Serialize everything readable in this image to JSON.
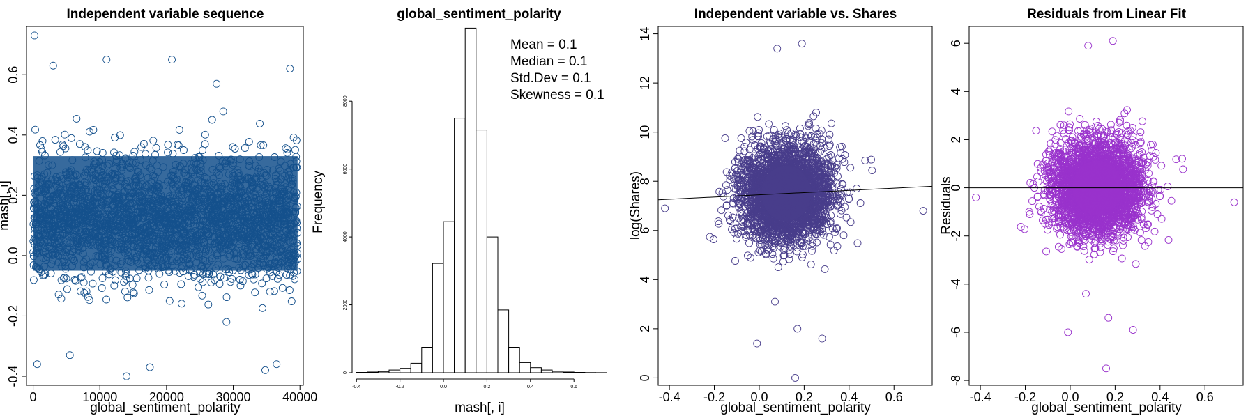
{
  "chart_data": [
    {
      "type": "scatter",
      "title": "Independent variable sequence",
      "xlabel": "global_sentiment_polarity",
      "ylabel": "mash[, i]",
      "xlim": [
        -1000,
        40500
      ],
      "ylim": [
        -0.43,
        0.76
      ],
      "xticks": [
        0,
        10000,
        20000,
        30000,
        40000
      ],
      "yticks": [
        -0.4,
        -0.2,
        0.0,
        0.2,
        0.4,
        0.6
      ],
      "ytick_labels": [
        "-0.4",
        "-0.2",
        "0.0",
        "0.2",
        "0.4",
        "0.6"
      ],
      "color": "#14508c",
      "marker": "open-circle",
      "n_points": 39644,
      "distribution": {
        "center": 0.12,
        "spread": 0.1,
        "core_range": [
          -0.05,
          0.33
        ]
      },
      "outliers": [
        [
          200,
          0.73
        ],
        [
          3000,
          0.63
        ],
        [
          11000,
          0.65
        ],
        [
          20800,
          0.65
        ],
        [
          27500,
          0.57
        ],
        [
          38500,
          0.62
        ],
        [
          600,
          -0.36
        ],
        [
          14000,
          -0.4
        ],
        [
          17500,
          -0.37
        ],
        [
          34800,
          -0.38
        ],
        [
          36500,
          -0.36
        ],
        [
          5500,
          -0.33
        ]
      ]
    },
    {
      "type": "histogram",
      "title": "global_sentiment_polarity",
      "xlabel": "mash[, i]",
      "ylabel": "Frequency",
      "xlim": [
        -0.42,
        0.75
      ],
      "ylim": [
        0,
        10200
      ],
      "xticks": [
        -0.4,
        -0.2,
        0.0,
        0.2,
        0.4,
        0.6
      ],
      "xtick_labels": [
        "-0.4",
        "-0.2",
        "0.0",
        "0.2",
        "0.4",
        "0.6"
      ],
      "yticks": [
        0,
        2000,
        4000,
        6000,
        8000
      ],
      "ytick_labels": [
        "0",
        "2000",
        "4000",
        "6000",
        "8000"
      ],
      "bin_width": 0.05,
      "bins_start": [
        -0.4,
        -0.35,
        -0.3,
        -0.25,
        -0.2,
        -0.15,
        -0.1,
        -0.05,
        0.0,
        0.05,
        0.1,
        0.15,
        0.2,
        0.25,
        0.3,
        0.35,
        0.4,
        0.45,
        0.5,
        0.55,
        0.6,
        0.65,
        0.7
      ],
      "counts": [
        10,
        20,
        35,
        80,
        130,
        280,
        750,
        3220,
        4450,
        7500,
        10150,
        7150,
        4000,
        1850,
        750,
        300,
        150,
        80,
        40,
        20,
        10,
        5,
        3
      ],
      "stats": [
        "Mean = 0.1",
        "Median = 0.1",
        "Std.Dev = 0.1",
        "Skewness = 0.1"
      ]
    },
    {
      "type": "scatter",
      "title": "Independent variable vs. Shares",
      "xlabel": "global_sentiment_polarity",
      "ylabel": "log(Shares)",
      "xlim": [
        -0.45,
        0.77
      ],
      "ylim": [
        -0.3,
        14.3
      ],
      "xticks": [
        -0.4,
        -0.2,
        0.0,
        0.2,
        0.4,
        0.6
      ],
      "xtick_labels": [
        "-0.4",
        "-0.2",
        "0.0",
        "0.2",
        "0.4",
        "0.6"
      ],
      "yticks": [
        0,
        2,
        4,
        6,
        8,
        10,
        12,
        14
      ],
      "ytick_labels": [
        "0",
        "2",
        "4",
        "6",
        "8",
        "10",
        "12",
        "14"
      ],
      "color": "#483d8b",
      "marker": "open-circle",
      "distribution": {
        "x_center": 0.12,
        "x_spread": 0.1,
        "y_center": 7.5,
        "y_spread": 0.95
      },
      "fit_line": {
        "intercept": 7.45,
        "slope": 0.45
      },
      "outliers": [
        [
          0.16,
          0.0
        ],
        [
          -0.01,
          1.4
        ],
        [
          0.28,
          1.6
        ],
        [
          0.17,
          2.0
        ],
        [
          0.07,
          3.1
        ],
        [
          0.19,
          13.6
        ],
        [
          0.08,
          13.4
        ],
        [
          0.73,
          6.8
        ],
        [
          -0.42,
          6.9
        ]
      ]
    },
    {
      "type": "scatter",
      "title": "Residuals from Linear Fit",
      "xlabel": "global_sentiment_polarity",
      "ylabel": "Residuals",
      "xlim": [
        -0.45,
        0.77
      ],
      "ylim": [
        -8.2,
        6.7
      ],
      "xticks": [
        -0.4,
        -0.2,
        0.0,
        0.2,
        0.4,
        0.6
      ],
      "xtick_labels": [
        "-0.4",
        "-0.2",
        "0.0",
        "0.2",
        "0.4",
        "0.6"
      ],
      "yticks": [
        -8,
        -6,
        -4,
        -2,
        0,
        2,
        4,
        6
      ],
      "ytick_labels": [
        "-8",
        "-6",
        "-4",
        "-2",
        "0",
        "2",
        "4",
        "6"
      ],
      "color": "#9932cc",
      "marker": "open-circle",
      "distribution": {
        "x_center": 0.12,
        "x_spread": 0.1,
        "y_center": 0.0,
        "y_spread": 0.95
      },
      "fit_line": {
        "intercept": 0,
        "slope": 0
      },
      "outliers": [
        [
          0.16,
          -7.5
        ],
        [
          -0.01,
          -6.0
        ],
        [
          0.28,
          -5.9
        ],
        [
          0.17,
          -5.4
        ],
        [
          0.07,
          -4.4
        ],
        [
          0.19,
          6.1
        ],
        [
          0.08,
          5.9
        ],
        [
          0.73,
          -0.6
        ],
        [
          -0.42,
          -0.4
        ]
      ]
    }
  ]
}
